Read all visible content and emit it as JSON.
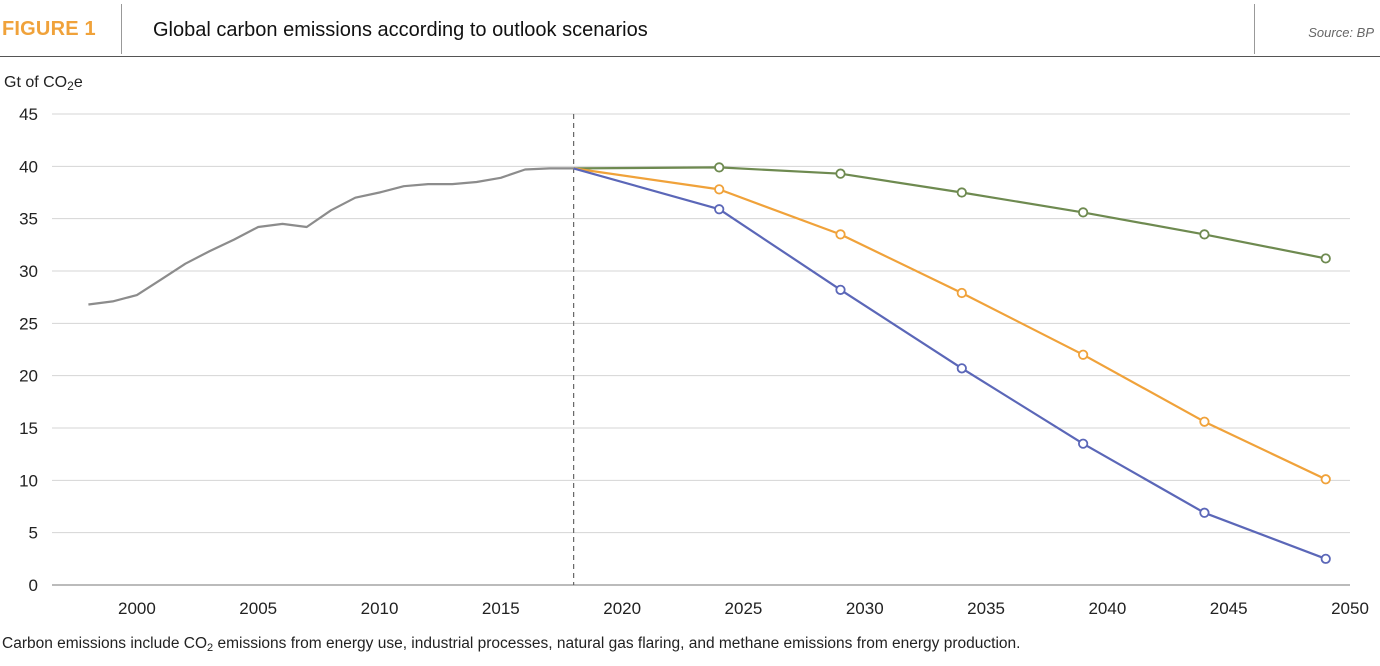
{
  "figure_label": "FIGURE 1",
  "title": "Global carbon emissions according to outlook scenarios",
  "source": "Source: BP",
  "unit_label": {
    "prefix": "Gt of CO",
    "sub": "2",
    "suffix": "e"
  },
  "footnote": {
    "prefix": "Carbon emissions include CO",
    "sub": "2",
    "suffix": " emissions from energy use, industrial processes, natural gas flaring, and methane emissions from energy production."
  },
  "chart_data": {
    "type": "line",
    "xlim": [
      1996.5,
      2050
    ],
    "ylim": [
      0,
      45
    ],
    "x_ticks": [
      2000,
      2005,
      2010,
      2015,
      2020,
      2025,
      2030,
      2035,
      2040,
      2045,
      2050
    ],
    "y_ticks": [
      0,
      5,
      10,
      15,
      20,
      25,
      30,
      35,
      40,
      45
    ],
    "grid": "horizontal",
    "reference_line_x": 2018,
    "series": [
      {
        "color": "#8c8c8c",
        "markers": false,
        "points": [
          [
            1998,
            26.8
          ],
          [
            1999,
            27.1
          ],
          [
            2000,
            27.7
          ],
          [
            2001,
            29.2
          ],
          [
            2002,
            30.7
          ],
          [
            2003,
            31.9
          ],
          [
            2004,
            33.0
          ],
          [
            2005,
            34.2
          ],
          [
            2006,
            34.5
          ],
          [
            2007,
            34.2
          ],
          [
            2008,
            35.8
          ],
          [
            2009,
            37.0
          ],
          [
            2010,
            37.5
          ],
          [
            2011,
            38.1
          ],
          [
            2012,
            38.3
          ],
          [
            2013,
            38.3
          ],
          [
            2014,
            38.5
          ],
          [
            2015,
            38.9
          ],
          [
            2016,
            39.7
          ],
          [
            2017,
            39.8
          ],
          [
            2018,
            39.8
          ]
        ]
      },
      {
        "color": "#6e8a50",
        "markers": true,
        "points": [
          [
            2018,
            39.8
          ],
          [
            2024,
            39.9
          ],
          [
            2029,
            39.3
          ],
          [
            2034,
            37.5
          ],
          [
            2039,
            35.6
          ],
          [
            2044,
            33.5
          ],
          [
            2049,
            31.2
          ]
        ]
      },
      {
        "color": "#f0a23a",
        "markers": true,
        "points": [
          [
            2018,
            39.8
          ],
          [
            2024,
            37.8
          ],
          [
            2029,
            33.5
          ],
          [
            2034,
            27.9
          ],
          [
            2039,
            22.0
          ],
          [
            2044,
            15.6
          ],
          [
            2049,
            10.1
          ]
        ]
      },
      {
        "color": "#5b67b8",
        "markers": true,
        "points": [
          [
            2018,
            39.8
          ],
          [
            2024,
            35.9
          ],
          [
            2029,
            28.2
          ],
          [
            2034,
            20.7
          ],
          [
            2039,
            13.5
          ],
          [
            2044,
            6.9
          ],
          [
            2049,
            2.5
          ]
        ]
      }
    ]
  }
}
